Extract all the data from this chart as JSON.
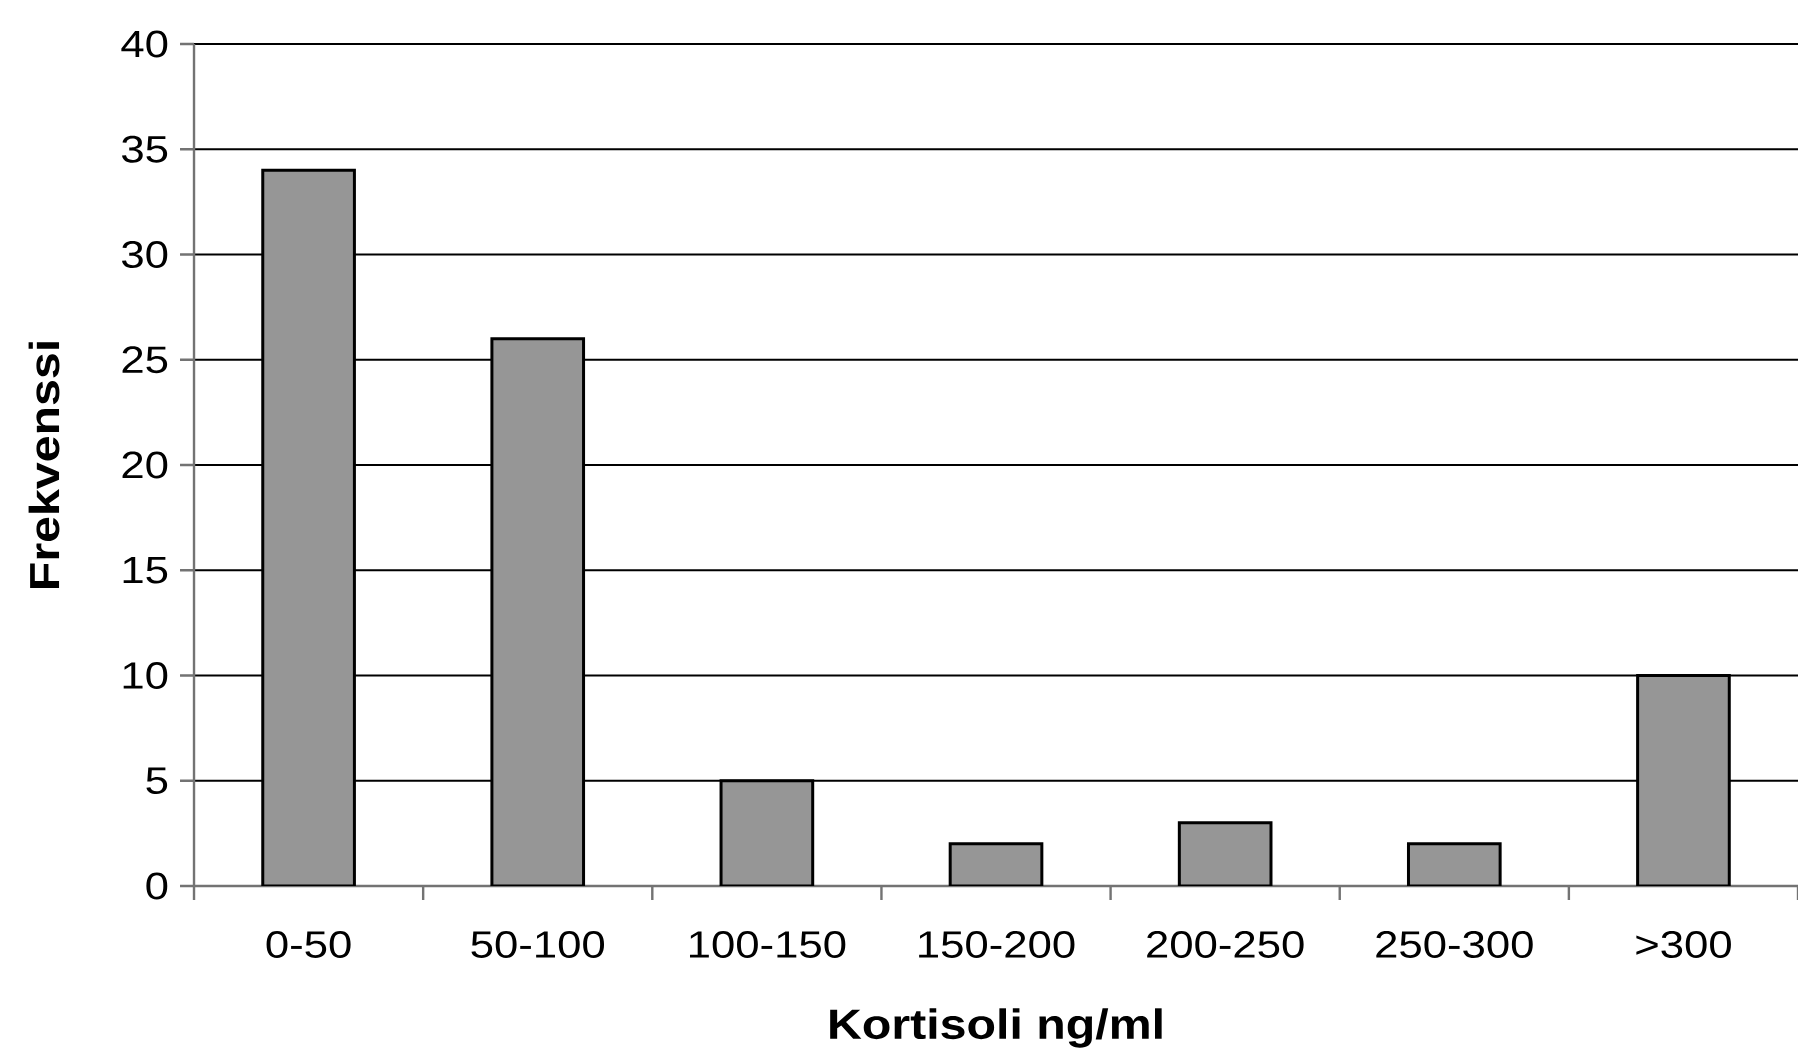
{
  "chart_data": {
    "type": "bar",
    "xlabel": "Kortisoli ng/ml",
    "ylabel": "Frekvenssi",
    "categories": [
      "0-50",
      "50-100",
      "100-150",
      "150-200",
      "200-250",
      "250-300",
      ">300"
    ],
    "values": [
      34,
      26,
      5,
      2,
      3,
      2,
      10
    ],
    "color": "#969696",
    "ylim": [
      0,
      40
    ],
    "yticks": [
      0,
      5,
      10,
      15,
      20,
      25,
      30,
      35,
      40
    ],
    "grid": "y"
  }
}
